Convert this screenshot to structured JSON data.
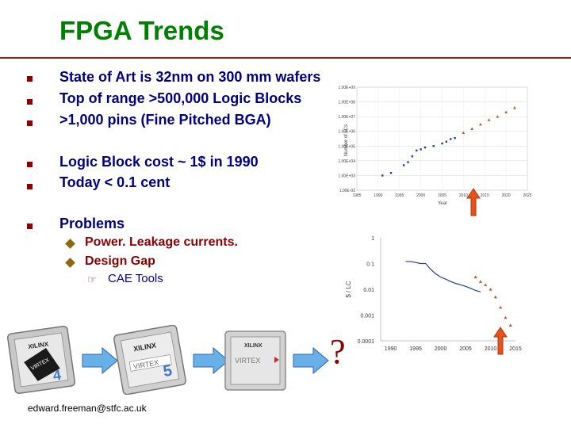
{
  "slide": {
    "title": "FPGA Trends",
    "bullets": [
      "State of Art is 32nm on 300 mm wafers",
      "Top of range >500,000 Logic Blocks",
      ">1,000 pins (Fine Pitched BGA)",
      "Logic Block cost ~ 1$ in 1990",
      "Today < 0.1 cent",
      "Problems"
    ],
    "sub_bullets": [
      "Power. Leakage currents.",
      "Design Gap"
    ],
    "sub_sub_bullets": [
      "CAE Tools"
    ],
    "footer_email": "edward.freeman@stfc.ac.uk",
    "question_mark": "?",
    "chips": [
      {
        "brand": "XILINX",
        "model": "VIRTEX",
        "num": "4"
      },
      {
        "brand": "XILINX",
        "model": "VIRTEX",
        "num": "5"
      },
      {
        "brand": "XILINX",
        "model": "VIRTEX",
        "num": ""
      }
    ]
  },
  "chart_data": [
    {
      "type": "scatter",
      "title": "",
      "xlabel": "Year",
      "ylabel": "Number of LCs",
      "x_ticks": [
        "1985",
        "1990",
        "1995",
        "2000",
        "2005",
        "2010",
        "2015",
        "2020",
        "2025"
      ],
      "y_ticks": [
        "1.00E-02",
        "1.00E+03",
        "1.00E+04",
        "1.00E+05",
        "1.00E+06",
        "1.00E+07",
        "1.00E+08",
        "1.00E+09"
      ],
      "series": [
        {
          "x": [
            1991,
            1993,
            1996,
            1997,
            1998,
            1999,
            2000,
            2001,
            2003,
            2005,
            2006,
            2007,
            2008
          ],
          "y": [
            1000,
            1500,
            5000,
            8000,
            20000,
            50000,
            60000,
            80000,
            100000,
            150000,
            200000,
            300000,
            350000
          ]
        },
        {
          "x": [
            2010,
            2012,
            2014,
            2016,
            2018,
            2020,
            2022
          ],
          "y": [
            800000,
            1500000,
            3000000,
            6000000,
            10000000,
            20000000,
            40000000
          ]
        }
      ]
    },
    {
      "type": "line",
      "title": "",
      "xlabel": "",
      "ylabel": "$ / LC",
      "x_ticks": [
        "1990",
        "1995",
        "2000",
        "2005",
        "2010",
        "2015"
      ],
      "y_ticks": [
        "1",
        "0.1",
        "0.01",
        "0.001",
        "0.0001"
      ],
      "ylim": [
        0.0001,
        1
      ],
      "series": [
        {
          "x": [
            1993,
            1994,
            1995,
            1996,
            1997,
            1998,
            1999,
            2000,
            2001,
            2002,
            2003,
            2004,
            2005,
            2006,
            2007,
            2008
          ],
          "y": [
            0.12,
            0.12,
            0.11,
            0.1,
            0.1,
            0.06,
            0.04,
            0.03,
            0.025,
            0.02,
            0.017,
            0.015,
            0.013,
            0.011,
            0.009,
            0.008
          ]
        },
        {
          "x": [
            2007,
            2008,
            2009,
            2010,
            2011,
            2012,
            2013,
            2014
          ],
          "y": [
            0.03,
            0.02,
            0.015,
            0.01,
            0.005,
            0.002,
            0.0008,
            0.0004
          ]
        }
      ]
    }
  ]
}
